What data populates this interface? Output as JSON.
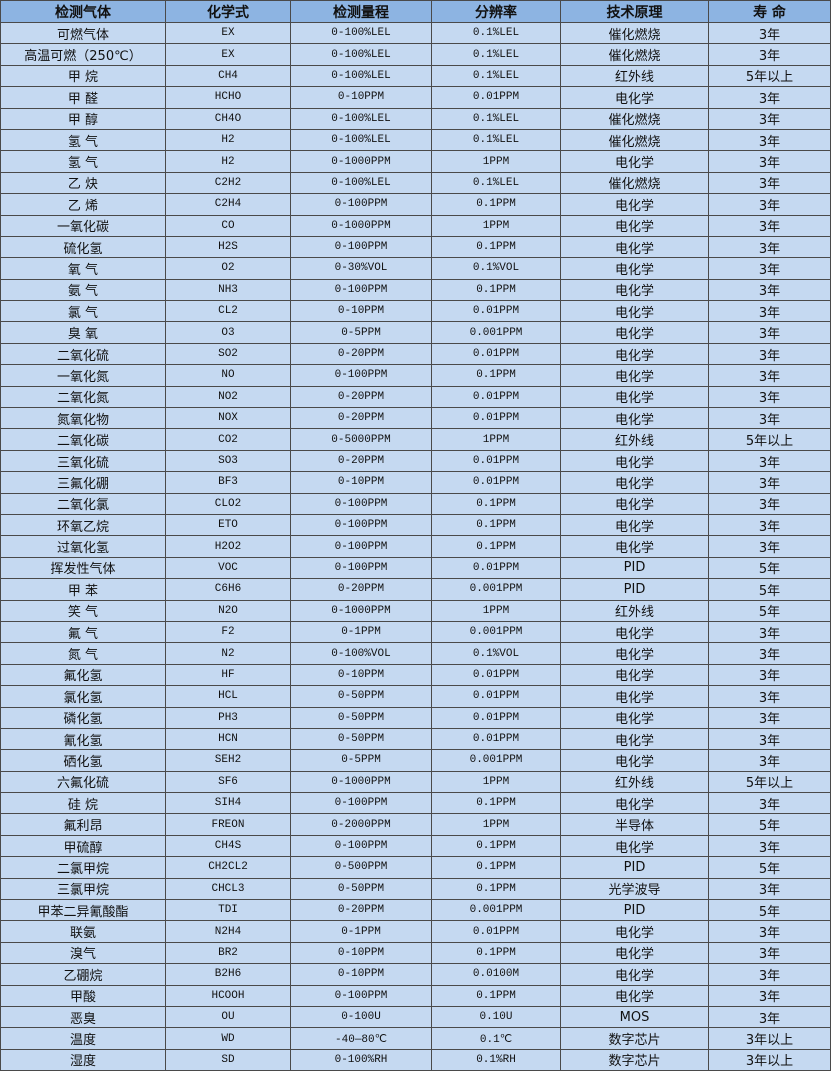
{
  "colors": {
    "header_bg": "#8db4e2",
    "row_bg": "#c5d9f1",
    "border": "#4a4a4a"
  },
  "headers": [
    "检测气体",
    "化学式",
    "检测量程",
    "分辨率",
    "技术原理",
    "寿 命"
  ],
  "rows": [
    [
      "可燃气体",
      "EX",
      "0-100%LEL",
      "0.1%LEL",
      "催化燃烧",
      "3年"
    ],
    [
      "高温可燃（250℃）",
      "EX",
      "0-100%LEL",
      "0.1%LEL",
      "催化燃烧",
      "3年"
    ],
    [
      "甲 烷",
      "CH4",
      "0-100%LEL",
      "0.1%LEL",
      "红外线",
      "5年以上"
    ],
    [
      "甲 醛",
      "HCHO",
      "0-10PPM",
      "0.01PPM",
      "电化学",
      "3年"
    ],
    [
      "甲 醇",
      "CH4O",
      "0-100%LEL",
      "0.1%LEL",
      "催化燃烧",
      "3年"
    ],
    [
      "氢 气",
      "H2",
      "0-100%LEL",
      "0.1%LEL",
      "催化燃烧",
      "3年"
    ],
    [
      "氢 气",
      "H2",
      "0-1000PPM",
      "1PPM",
      "电化学",
      "3年"
    ],
    [
      "乙 炔",
      "C2H2",
      "0-100%LEL",
      "0.1%LEL",
      "催化燃烧",
      "3年"
    ],
    [
      "乙 烯",
      "C2H4",
      "0-100PPM",
      "0.1PPM",
      "电化学",
      "3年"
    ],
    [
      "一氧化碳",
      "CO",
      "0-1000PPM",
      "1PPM",
      "电化学",
      "3年"
    ],
    [
      "硫化氢",
      "H2S",
      "0-100PPM",
      "0.1PPM",
      "电化学",
      "3年"
    ],
    [
      "氧 气",
      "O2",
      "0-30%VOL",
      "0.1%VOL",
      "电化学",
      "3年"
    ],
    [
      "氨 气",
      "NH3",
      "0-100PPM",
      "0.1PPM",
      "电化学",
      "3年"
    ],
    [
      "氯 气",
      "CL2",
      "0-10PPM",
      "0.01PPM",
      "电化学",
      "3年"
    ],
    [
      "臭 氧",
      "O3",
      "0-5PPM",
      "0.001PPM",
      "电化学",
      "3年"
    ],
    [
      "二氧化硫",
      "SO2",
      "0-20PPM",
      "0.01PPM",
      "电化学",
      "3年"
    ],
    [
      "一氧化氮",
      "NO",
      "0-100PPM",
      "0.1PPM",
      "电化学",
      "3年"
    ],
    [
      "二氧化氮",
      "NO2",
      "0-20PPM",
      "0.01PPM",
      "电化学",
      "3年"
    ],
    [
      "氮氧化物",
      "NOX",
      "0-20PPM",
      "0.01PPM",
      "电化学",
      "3年"
    ],
    [
      "二氧化碳",
      "CO2",
      "0-5000PPM",
      "1PPM",
      "红外线",
      "5年以上"
    ],
    [
      "三氧化硫",
      "SO3",
      "0-20PPM",
      "0.01PPM",
      "电化学",
      "3年"
    ],
    [
      "三氟化硼",
      "BF3",
      "0-10PPM",
      "0.01PPM",
      "电化学",
      "3年"
    ],
    [
      "二氧化氯",
      "CLO2",
      "0-100PPM",
      "0.1PPM",
      "电化学",
      "3年"
    ],
    [
      "环氧乙烷",
      "ETO",
      "0-100PPM",
      "0.1PPM",
      "电化学",
      "3年"
    ],
    [
      "过氧化氢",
      "H2O2",
      "0-100PPM",
      "0.1PPM",
      "电化学",
      "3年"
    ],
    [
      "挥发性气体",
      "VOC",
      "0-100PPM",
      "0.01PPM",
      "PID",
      "5年"
    ],
    [
      "甲 苯",
      "C6H6",
      "0-20PPM",
      "0.001PPM",
      "PID",
      "5年"
    ],
    [
      "笑 气",
      "N2O",
      "0-1000PPM",
      "1PPM",
      "红外线",
      "5年"
    ],
    [
      "氟 气",
      "F2",
      "0-1PPM",
      "0.001PPM",
      "电化学",
      "3年"
    ],
    [
      "氮 气",
      "N2",
      "0-100%VOL",
      "0.1%VOL",
      "电化学",
      "3年"
    ],
    [
      "氟化氢",
      "HF",
      "0-10PPM",
      "0.01PPM",
      "电化学",
      "3年"
    ],
    [
      "氯化氢",
      "HCL",
      "0-50PPM",
      "0.01PPM",
      "电化学",
      "3年"
    ],
    [
      "磷化氢",
      "PH3",
      "0-50PPM",
      "0.01PPM",
      "电化学",
      "3年"
    ],
    [
      "氰化氢",
      "HCN",
      "0-50PPM",
      "0.01PPM",
      "电化学",
      "3年"
    ],
    [
      "硒化氢",
      "SEH2",
      "0-5PPM",
      "0.001PPM",
      "电化学",
      "3年"
    ],
    [
      "六氟化硫",
      "SF6",
      "0-1000PPM",
      "1PPM",
      "红外线",
      "5年以上"
    ],
    [
      "硅 烷",
      "SIH4",
      "0-100PPM",
      "0.1PPM",
      "电化学",
      "3年"
    ],
    [
      "氟利昂",
      "FREON",
      "0-2000PPM",
      "1PPM",
      "半导体",
      "5年"
    ],
    [
      "甲硫醇",
      "CH4S",
      "0-100PPM",
      "0.1PPM",
      "电化学",
      "3年"
    ],
    [
      "二氯甲烷",
      "CH2CL2",
      "0-500PPM",
      "0.1PPM",
      "PID",
      "5年"
    ],
    [
      "三氯甲烷",
      "CHCL3",
      "0-50PPM",
      "0.1PPM",
      "光学波导",
      "3年"
    ],
    [
      "甲苯二异氰酸酯",
      "TDI",
      "0-20PPM",
      "0.001PPM",
      "PID",
      "5年"
    ],
    [
      "联氨",
      "N2H4",
      "0-1PPM",
      "0.01PPM",
      "电化学",
      "3年"
    ],
    [
      "溴气",
      "BR2",
      "0-10PPM",
      "0.1PPM",
      "电化学",
      "3年"
    ],
    [
      "乙硼烷",
      "B2H6",
      "0-10PPM",
      "0.0100M",
      "电化学",
      "3年"
    ],
    [
      "甲酸",
      "HCOOH",
      "0-100PPM",
      "0.1PPM",
      "电化学",
      "3年"
    ],
    [
      "恶臭",
      "OU",
      "0-100U",
      "0.10U",
      "MOS",
      "3年"
    ],
    [
      "温度",
      "WD",
      "-40—80℃",
      "0.1℃",
      "数字芯片",
      "3年以上"
    ],
    [
      "湿度",
      "SD",
      "0-100%RH",
      "0.1%RH",
      "数字芯片",
      "3年以上"
    ]
  ]
}
